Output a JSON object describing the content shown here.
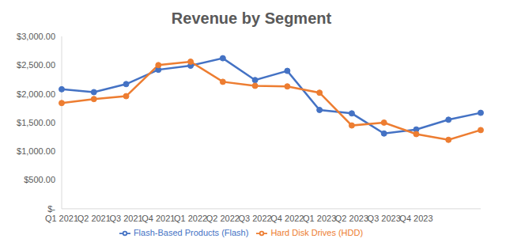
{
  "chart_data": {
    "type": "line",
    "title": "Revenue by Segment",
    "categories": [
      "Q1 2021",
      "Q2 2021",
      "Q3 2021",
      "Q4 2021",
      "Q1 2022",
      "Q2 2022",
      "Q3 2022",
      "Q4 2022",
      "Q1 2023",
      "Q2 2023",
      "Q3 2023",
      "Q4 2023",
      null,
      null
    ],
    "series": [
      {
        "name": "Flash-Based Products (Flash)",
        "color": "#4472c4",
        "marker": "circle",
        "values": [
          2080,
          2030,
          2170,
          2420,
          2490,
          2620,
          2240,
          2400,
          1720,
          1660,
          1310,
          1380,
          1550,
          1670
        ]
      },
      {
        "name": "Hard Disk Drives (HDD)",
        "color": "#ed7d31",
        "marker": "circle",
        "values": [
          1840,
          1910,
          1960,
          2500,
          2560,
          2210,
          2140,
          2130,
          2020,
          1450,
          1500,
          1300,
          1200,
          1370
        ]
      }
    ],
    "ylim": [
      0,
      3000
    ],
    "yticks": [
      {
        "value": 0,
        "label": "$-"
      },
      {
        "value": 500,
        "label": "$500.00"
      },
      {
        "value": 1000,
        "label": "$1,000.00"
      },
      {
        "value": 1500,
        "label": "$1,500.00"
      },
      {
        "value": 2000,
        "label": "$2,000.00"
      },
      {
        "value": 2500,
        "label": "$2,500.00"
      },
      {
        "value": 3000,
        "label": "$3,000.00"
      }
    ],
    "grid": false,
    "legend": "bottom"
  }
}
